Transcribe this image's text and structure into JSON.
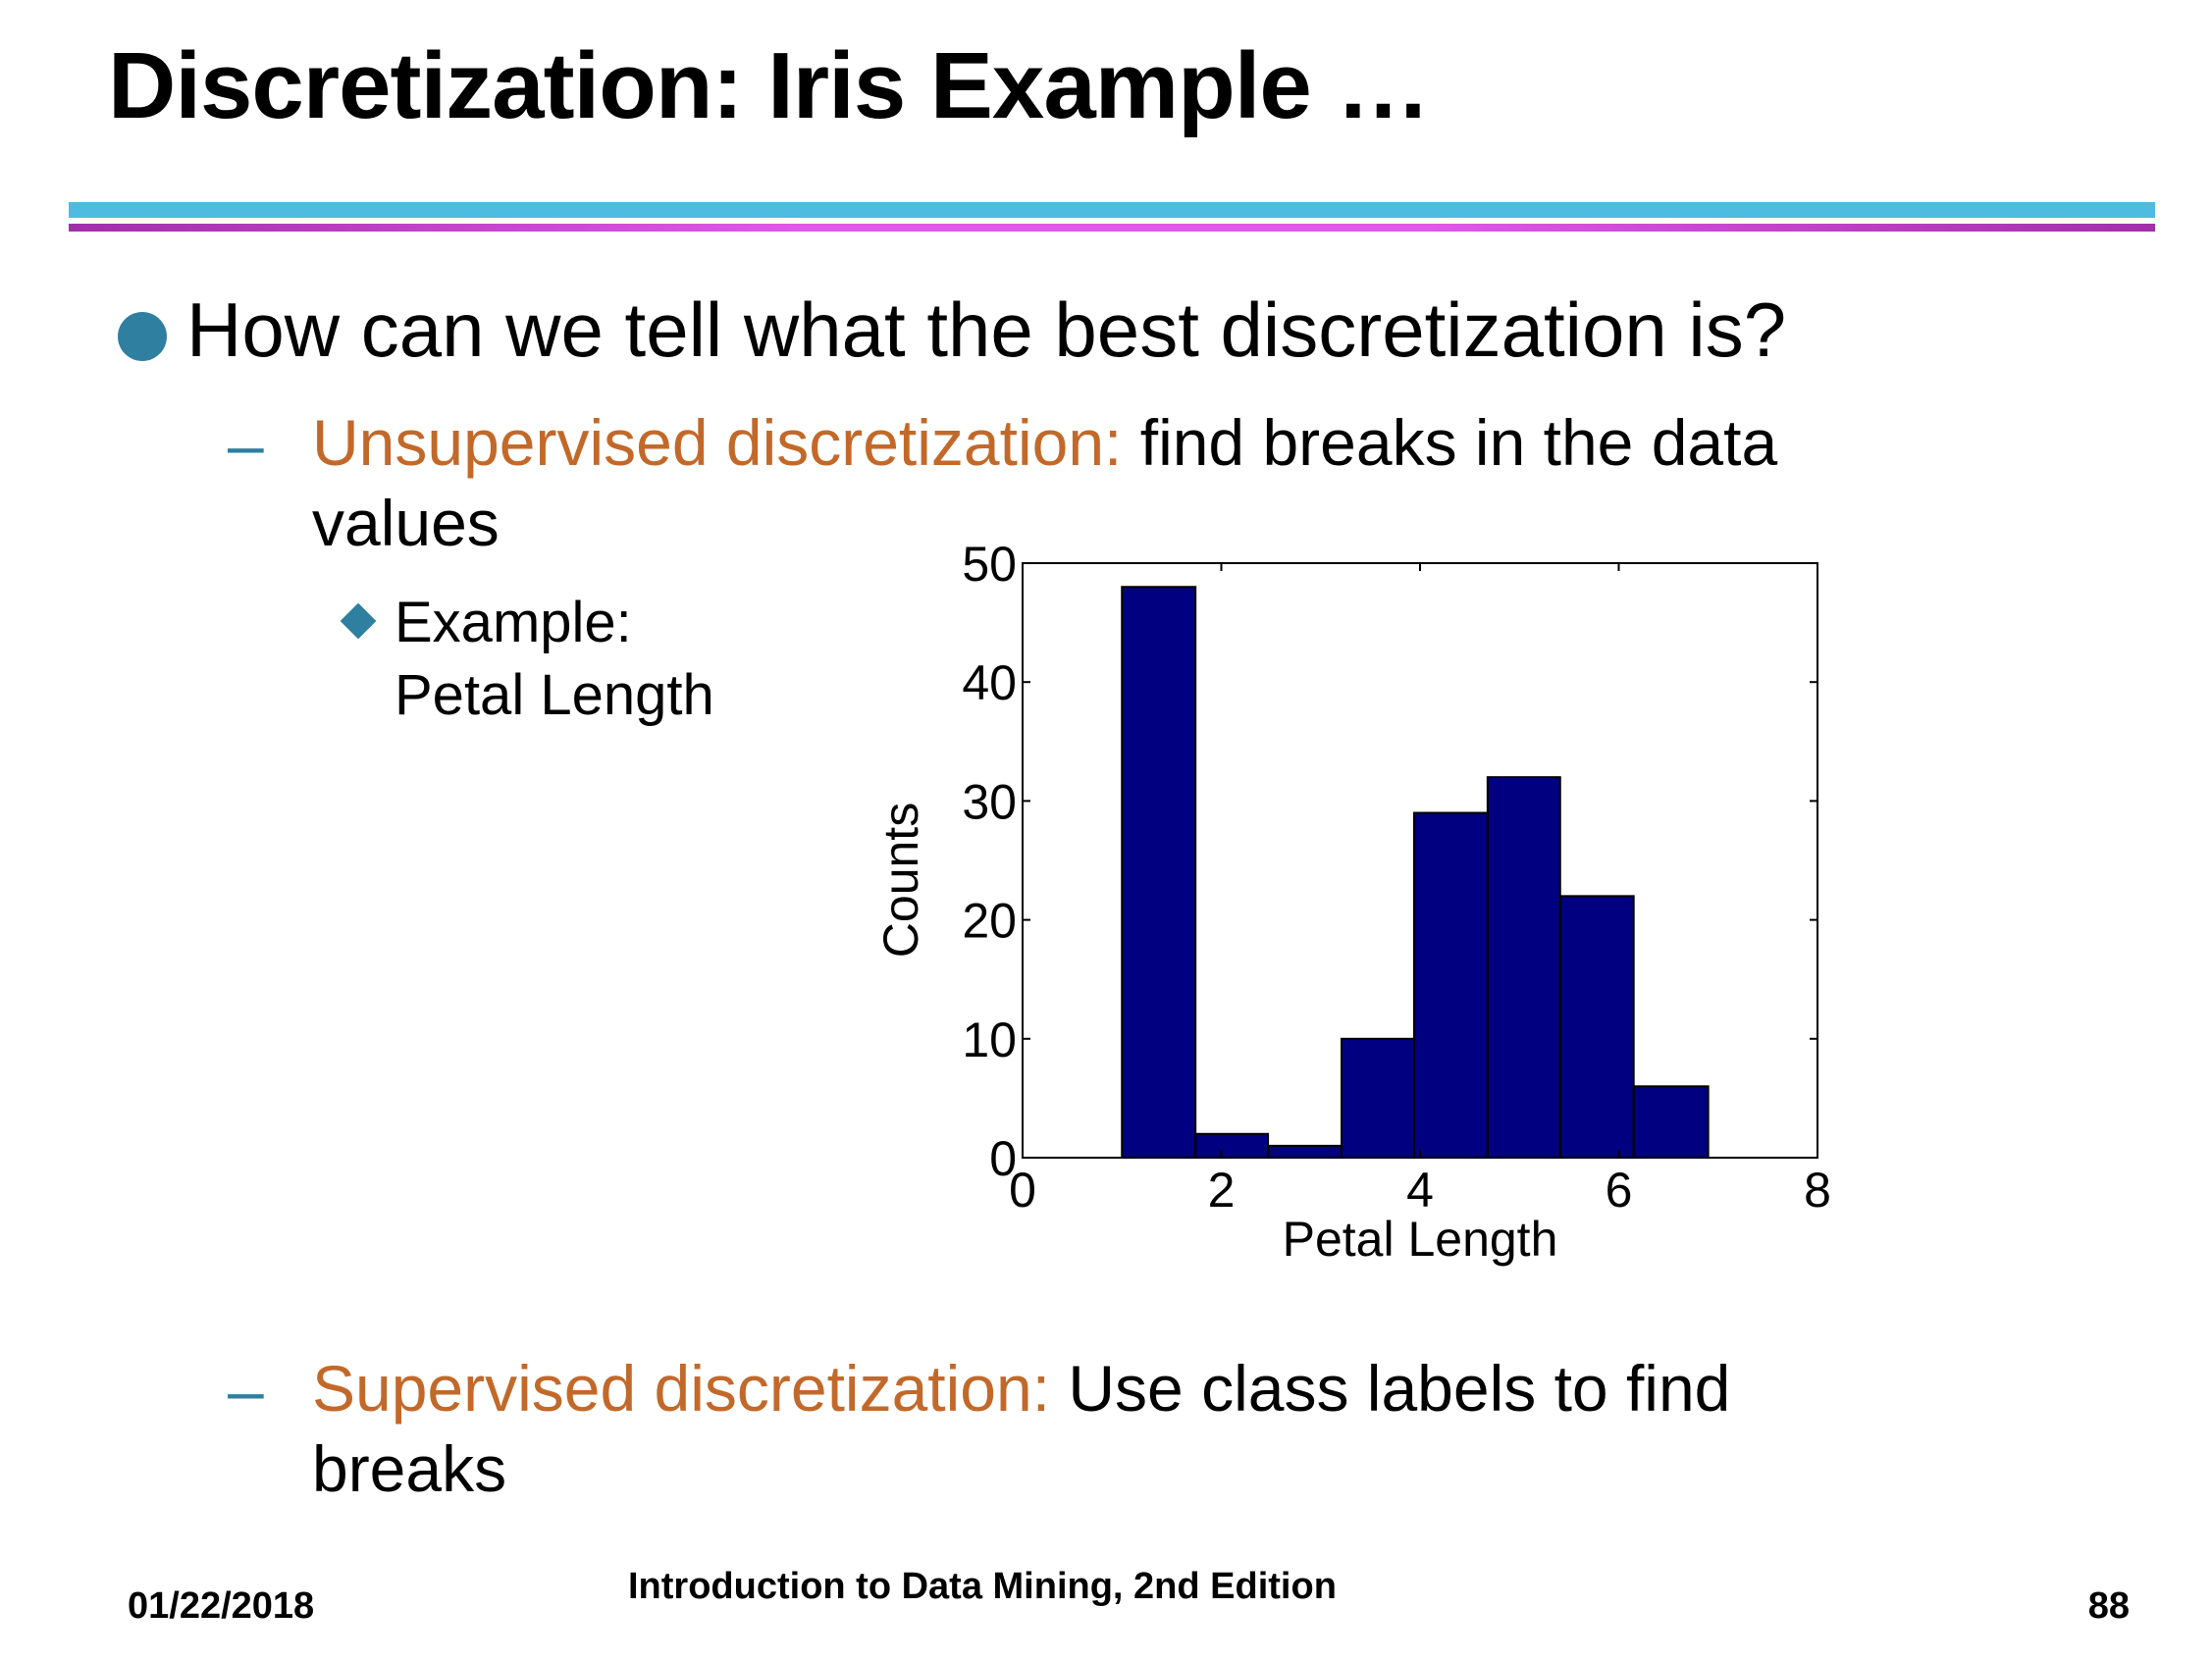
{
  "slide": {
    "title": "Discretization: Iris Example …",
    "bullet1": "How can we tell what the best discretization is?",
    "sub1": {
      "term": "Unsupervised discretization:",
      "rest_line1": " find breaks in the data",
      "rest_line2": "values"
    },
    "example": {
      "line1": "Example:",
      "line2": "Petal Length"
    },
    "sub2": {
      "term": "Supervised discretization:",
      "rest_line1": " Use class labels to find",
      "rest_line2": "breaks"
    },
    "dash": "–"
  },
  "footer": {
    "date": "01/22/2018",
    "center": "Introduction to Data Mining, 2nd Edition",
    "page": "88"
  },
  "colors": {
    "bar_fill": "#000080",
    "accent_orange": "#c2692a",
    "bullet_blue": "#2e7fa0",
    "rule_blue": "#4ebbe0",
    "rule_magenta": "#e058e8"
  },
  "chart_data": {
    "type": "bar",
    "title": "",
    "xlabel": "Petal Length",
    "ylabel": "Counts",
    "xlim": [
      0,
      8
    ],
    "ylim": [
      0,
      50
    ],
    "xticks": [
      "0",
      "2",
      "4",
      "6",
      "8"
    ],
    "yticks": [
      "0",
      "10",
      "20",
      "30",
      "40",
      "50"
    ],
    "grid": false,
    "bins": [
      {
        "x0": 1.0,
        "x1": 1.74,
        "count": 48
      },
      {
        "x0": 1.74,
        "x1": 2.47,
        "count": 2
      },
      {
        "x0": 2.47,
        "x1": 3.21,
        "count": 1
      },
      {
        "x0": 3.21,
        "x1": 3.94,
        "count": 10
      },
      {
        "x0": 3.94,
        "x1": 4.68,
        "count": 29
      },
      {
        "x0": 4.68,
        "x1": 5.41,
        "count": 32
      },
      {
        "x0": 5.41,
        "x1": 6.15,
        "count": 22
      },
      {
        "x0": 6.15,
        "x1": 6.9,
        "count": 6
      }
    ]
  }
}
